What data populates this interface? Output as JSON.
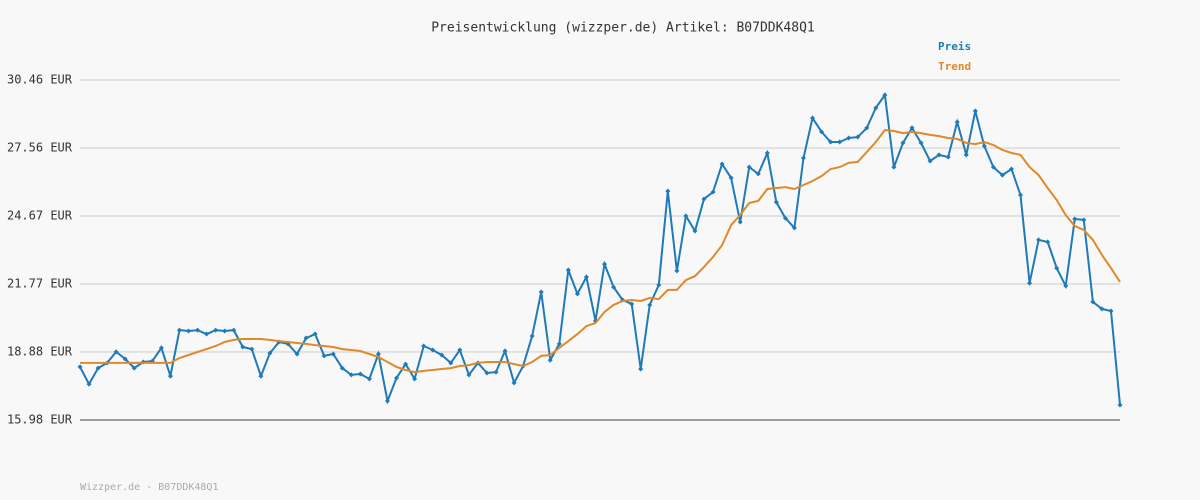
{
  "chart_data": {
    "type": "line",
    "title": "Preisentwicklung (wizzper.de) Artikel: B07DDK48Q1",
    "footer": "Wizzper.de - B07DDK48Q1",
    "legend": "top-right",
    "grid": true,
    "ylim": [
      15.98,
      30.46
    ],
    "yticks": [
      {
        "value": 15.98,
        "label": "15.98 EUR"
      },
      {
        "value": 18.88,
        "label": "18.88 EUR"
      },
      {
        "value": 21.77,
        "label": "21.77 EUR"
      },
      {
        "value": 24.67,
        "label": "24.67 EUR"
      },
      {
        "value": 27.56,
        "label": "27.56 EUR"
      },
      {
        "value": 30.46,
        "label": "30.46 EUR"
      }
    ],
    "series": [
      {
        "name": "Preis",
        "color": "#1f7ab8",
        "markers": true,
        "values": [
          18.24,
          17.51,
          18.19,
          18.41,
          18.88,
          18.58,
          18.19,
          18.45,
          18.49,
          19.05,
          17.85,
          19.81,
          19.77,
          19.81,
          19.64,
          19.81,
          19.77,
          19.81,
          19.09,
          19.0,
          17.85,
          18.83,
          19.3,
          19.22,
          18.79,
          19.47,
          19.64,
          18.71,
          18.79,
          18.19,
          17.9,
          17.94,
          17.73,
          18.79,
          16.79,
          17.77,
          18.36,
          17.73,
          19.13,
          18.96,
          18.75,
          18.41,
          18.96,
          17.9,
          18.41,
          17.98,
          18.02,
          18.92,
          17.56,
          18.28,
          19.56,
          21.43,
          18.53,
          19.22,
          22.37,
          21.35,
          22.07,
          20.2,
          22.62,
          21.64,
          21.09,
          20.92,
          18.15,
          20.88,
          21.73,
          25.73,
          22.33,
          24.67,
          24.03,
          25.39,
          25.69,
          26.88,
          26.29,
          24.41,
          26.75,
          26.46,
          27.35,
          25.26,
          24.58,
          24.16,
          27.14,
          28.84,
          28.25,
          27.82,
          27.82,
          27.99,
          28.03,
          28.42,
          29.27,
          29.82,
          26.75,
          27.78,
          28.42,
          27.78,
          27.01,
          27.27,
          27.18,
          28.67,
          27.27,
          29.14,
          27.65,
          26.75,
          26.41,
          26.67,
          25.56,
          21.81,
          23.65,
          23.56,
          22.45,
          21.69,
          24.54,
          24.5,
          21.01,
          20.71,
          20.62,
          16.62
        ]
      },
      {
        "name": "Trend",
        "color": "#e0892a",
        "markers": false,
        "values": [
          18.41,
          18.41,
          18.41,
          18.41,
          18.41,
          18.41,
          18.41,
          18.41,
          18.41,
          18.41,
          18.41,
          18.62,
          18.75,
          18.88,
          19.0,
          19.13,
          19.3,
          19.39,
          19.43,
          19.43,
          19.43,
          19.39,
          19.34,
          19.3,
          19.26,
          19.22,
          19.17,
          19.13,
          19.09,
          19.0,
          18.96,
          18.92,
          18.79,
          18.66,
          18.45,
          18.24,
          18.11,
          18.02,
          18.07,
          18.11,
          18.15,
          18.19,
          18.28,
          18.32,
          18.41,
          18.45,
          18.45,
          18.45,
          18.36,
          18.28,
          18.45,
          18.71,
          18.75,
          19.05,
          19.34,
          19.64,
          19.98,
          20.11,
          20.58,
          20.88,
          21.05,
          21.09,
          21.05,
          21.18,
          21.13,
          21.52,
          21.52,
          21.94,
          22.11,
          22.5,
          22.92,
          23.43,
          24.28,
          24.71,
          25.22,
          25.31,
          25.82,
          25.86,
          25.9,
          25.82,
          25.99,
          26.16,
          26.37,
          26.67,
          26.75,
          26.93,
          26.97,
          27.39,
          27.82,
          28.33,
          28.29,
          28.2,
          28.25,
          28.2,
          28.12,
          28.07,
          27.99,
          27.95,
          27.78,
          27.73,
          27.82,
          27.69,
          27.48,
          27.35,
          27.27,
          26.75,
          26.41,
          25.86,
          25.35,
          24.71,
          24.24,
          24.07,
          23.65,
          23.01,
          22.45,
          21.86
        ]
      }
    ]
  }
}
